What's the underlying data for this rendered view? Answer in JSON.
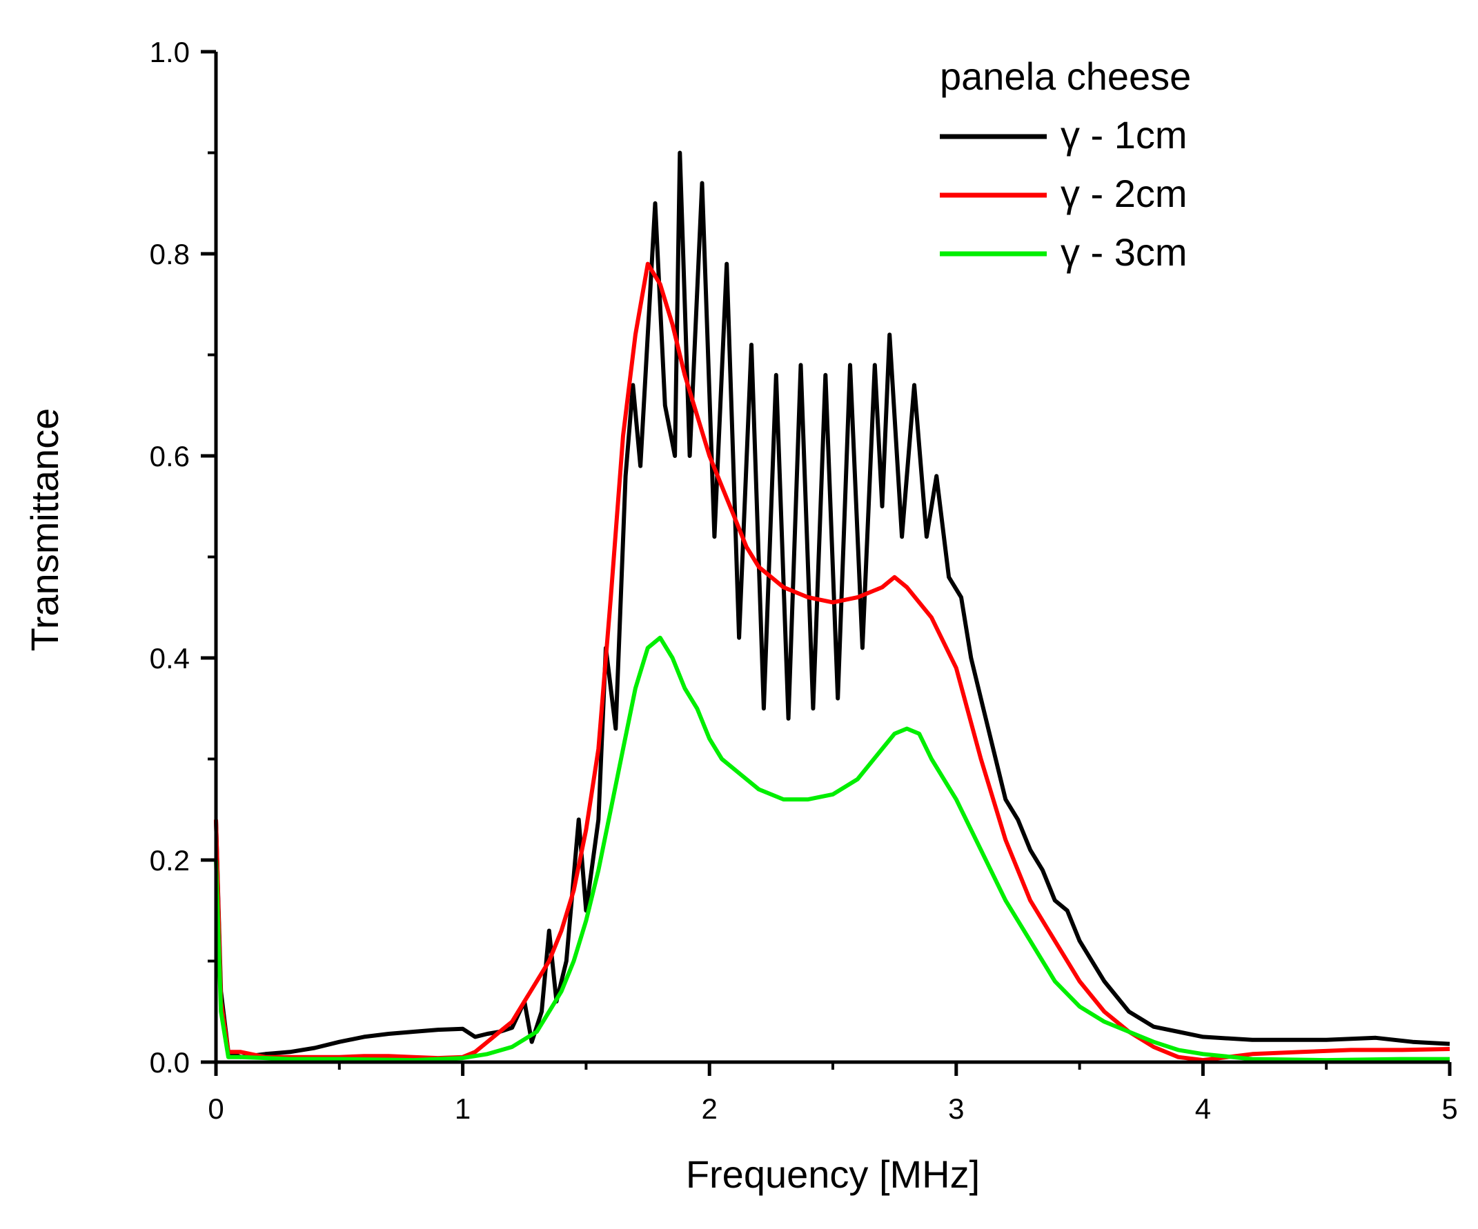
{
  "chart_data": {
    "type": "line",
    "title": "",
    "xlabel": "Frequency [MHz]",
    "ylabel": "Transmittance",
    "xlim": [
      0,
      5
    ],
    "ylim": [
      0,
      1.0
    ],
    "x_ticks": [
      0,
      1,
      2,
      3,
      4,
      5
    ],
    "x_tick_labels": [
      "0",
      "1",
      "2",
      "3",
      "4",
      "5"
    ],
    "y_ticks": [
      0.0,
      0.2,
      0.4,
      0.6,
      0.8,
      1.0
    ],
    "y_tick_labels": [
      "0.0",
      "0.2",
      "0.4",
      "0.6",
      "0.8",
      "1.0"
    ],
    "grid": false,
    "legend": {
      "title": "panela cheese",
      "placement": "top-right"
    },
    "series": [
      {
        "name": "γ - 1cm",
        "color": "#000000",
        "points": [
          [
            0.0,
            0.24
          ],
          [
            0.02,
            0.07
          ],
          [
            0.05,
            0.01
          ],
          [
            0.1,
            0.005
          ],
          [
            0.2,
            0.008
          ],
          [
            0.3,
            0.01
          ],
          [
            0.4,
            0.014
          ],
          [
            0.5,
            0.02
          ],
          [
            0.6,
            0.025
          ],
          [
            0.7,
            0.028
          ],
          [
            0.8,
            0.03
          ],
          [
            0.9,
            0.032
          ],
          [
            1.0,
            0.033
          ],
          [
            1.05,
            0.025
          ],
          [
            1.1,
            0.028
          ],
          [
            1.15,
            0.03
          ],
          [
            1.2,
            0.034
          ],
          [
            1.25,
            0.06
          ],
          [
            1.28,
            0.02
          ],
          [
            1.32,
            0.05
          ],
          [
            1.35,
            0.13
          ],
          [
            1.38,
            0.06
          ],
          [
            1.42,
            0.1
          ],
          [
            1.47,
            0.24
          ],
          [
            1.5,
            0.15
          ],
          [
            1.55,
            0.24
          ],
          [
            1.58,
            0.41
          ],
          [
            1.62,
            0.33
          ],
          [
            1.66,
            0.58
          ],
          [
            1.69,
            0.67
          ],
          [
            1.72,
            0.59
          ],
          [
            1.78,
            0.85
          ],
          [
            1.82,
            0.65
          ],
          [
            1.86,
            0.6
          ],
          [
            1.88,
            0.9
          ],
          [
            1.92,
            0.6
          ],
          [
            1.97,
            0.87
          ],
          [
            2.02,
            0.52
          ],
          [
            2.07,
            0.79
          ],
          [
            2.12,
            0.42
          ],
          [
            2.17,
            0.71
          ],
          [
            2.22,
            0.35
          ],
          [
            2.27,
            0.68
          ],
          [
            2.32,
            0.34
          ],
          [
            2.37,
            0.69
          ],
          [
            2.42,
            0.35
          ],
          [
            2.47,
            0.68
          ],
          [
            2.52,
            0.36
          ],
          [
            2.57,
            0.69
          ],
          [
            2.62,
            0.41
          ],
          [
            2.67,
            0.69
          ],
          [
            2.7,
            0.55
          ],
          [
            2.73,
            0.72
          ],
          [
            2.78,
            0.52
          ],
          [
            2.83,
            0.67
          ],
          [
            2.88,
            0.52
          ],
          [
            2.92,
            0.58
          ],
          [
            2.97,
            0.48
          ],
          [
            3.02,
            0.46
          ],
          [
            3.06,
            0.4
          ],
          [
            3.11,
            0.35
          ],
          [
            3.16,
            0.3
          ],
          [
            3.2,
            0.26
          ],
          [
            3.25,
            0.24
          ],
          [
            3.3,
            0.21
          ],
          [
            3.35,
            0.19
          ],
          [
            3.4,
            0.16
          ],
          [
            3.45,
            0.15
          ],
          [
            3.5,
            0.12
          ],
          [
            3.6,
            0.08
          ],
          [
            3.7,
            0.05
          ],
          [
            3.8,
            0.035
          ],
          [
            3.9,
            0.03
          ],
          [
            4.0,
            0.025
          ],
          [
            4.2,
            0.022
          ],
          [
            4.5,
            0.022
          ],
          [
            4.7,
            0.024
          ],
          [
            4.85,
            0.02
          ],
          [
            5.0,
            0.018
          ]
        ]
      },
      {
        "name": "γ - 2cm",
        "color": "#ff0000",
        "points": [
          [
            0.0,
            0.24
          ],
          [
            0.02,
            0.06
          ],
          [
            0.05,
            0.01
          ],
          [
            0.1,
            0.01
          ],
          [
            0.2,
            0.005
          ],
          [
            0.3,
            0.005
          ],
          [
            0.4,
            0.005
          ],
          [
            0.5,
            0.005
          ],
          [
            0.6,
            0.006
          ],
          [
            0.7,
            0.006
          ],
          [
            0.8,
            0.005
          ],
          [
            0.9,
            0.004
          ],
          [
            1.0,
            0.005
          ],
          [
            1.05,
            0.01
          ],
          [
            1.1,
            0.02
          ],
          [
            1.15,
            0.03
          ],
          [
            1.2,
            0.04
          ],
          [
            1.25,
            0.06
          ],
          [
            1.3,
            0.08
          ],
          [
            1.35,
            0.1
          ],
          [
            1.4,
            0.13
          ],
          [
            1.45,
            0.17
          ],
          [
            1.5,
            0.23
          ],
          [
            1.55,
            0.31
          ],
          [
            1.6,
            0.46
          ],
          [
            1.65,
            0.62
          ],
          [
            1.7,
            0.72
          ],
          [
            1.75,
            0.79
          ],
          [
            1.8,
            0.77
          ],
          [
            1.85,
            0.73
          ],
          [
            1.9,
            0.68
          ],
          [
            1.95,
            0.64
          ],
          [
            2.0,
            0.6
          ],
          [
            2.05,
            0.57
          ],
          [
            2.1,
            0.54
          ],
          [
            2.15,
            0.51
          ],
          [
            2.2,
            0.49
          ],
          [
            2.3,
            0.47
          ],
          [
            2.4,
            0.46
          ],
          [
            2.5,
            0.455
          ],
          [
            2.6,
            0.46
          ],
          [
            2.7,
            0.47
          ],
          [
            2.75,
            0.48
          ],
          [
            2.8,
            0.47
          ],
          [
            2.9,
            0.44
          ],
          [
            3.0,
            0.39
          ],
          [
            3.1,
            0.3
          ],
          [
            3.2,
            0.22
          ],
          [
            3.3,
            0.16
          ],
          [
            3.4,
            0.12
          ],
          [
            3.5,
            0.08
          ],
          [
            3.6,
            0.05
          ],
          [
            3.7,
            0.03
          ],
          [
            3.8,
            0.015
          ],
          [
            3.9,
            0.005
          ],
          [
            4.0,
            0.002
          ],
          [
            4.1,
            0.005
          ],
          [
            4.2,
            0.008
          ],
          [
            4.4,
            0.01
          ],
          [
            4.6,
            0.012
          ],
          [
            4.8,
            0.012
          ],
          [
            5.0,
            0.013
          ]
        ]
      },
      {
        "name": "γ - 3cm",
        "color": "#00ee00",
        "points": [
          [
            0.0,
            0.2
          ],
          [
            0.02,
            0.05
          ],
          [
            0.05,
            0.005
          ],
          [
            0.1,
            0.005
          ],
          [
            0.3,
            0.003
          ],
          [
            0.5,
            0.003
          ],
          [
            0.8,
            0.002
          ],
          [
            1.0,
            0.004
          ],
          [
            1.1,
            0.008
          ],
          [
            1.2,
            0.015
          ],
          [
            1.3,
            0.03
          ],
          [
            1.35,
            0.05
          ],
          [
            1.4,
            0.07
          ],
          [
            1.45,
            0.1
          ],
          [
            1.5,
            0.14
          ],
          [
            1.55,
            0.19
          ],
          [
            1.6,
            0.25
          ],
          [
            1.65,
            0.31
          ],
          [
            1.7,
            0.37
          ],
          [
            1.75,
            0.41
          ],
          [
            1.8,
            0.42
          ],
          [
            1.85,
            0.4
          ],
          [
            1.9,
            0.37
          ],
          [
            1.95,
            0.35
          ],
          [
            2.0,
            0.32
          ],
          [
            2.05,
            0.3
          ],
          [
            2.1,
            0.29
          ],
          [
            2.15,
            0.28
          ],
          [
            2.2,
            0.27
          ],
          [
            2.3,
            0.26
          ],
          [
            2.4,
            0.26
          ],
          [
            2.5,
            0.265
          ],
          [
            2.6,
            0.28
          ],
          [
            2.7,
            0.31
          ],
          [
            2.75,
            0.325
          ],
          [
            2.8,
            0.33
          ],
          [
            2.85,
            0.325
          ],
          [
            2.9,
            0.3
          ],
          [
            3.0,
            0.26
          ],
          [
            3.1,
            0.21
          ],
          [
            3.2,
            0.16
          ],
          [
            3.3,
            0.12
          ],
          [
            3.4,
            0.08
          ],
          [
            3.5,
            0.055
          ],
          [
            3.6,
            0.04
          ],
          [
            3.7,
            0.03
          ],
          [
            3.8,
            0.02
          ],
          [
            3.9,
            0.012
          ],
          [
            4.0,
            0.008
          ],
          [
            4.2,
            0.003
          ],
          [
            4.5,
            0.002
          ],
          [
            4.8,
            0.003
          ],
          [
            5.0,
            0.003
          ]
        ]
      }
    ]
  }
}
